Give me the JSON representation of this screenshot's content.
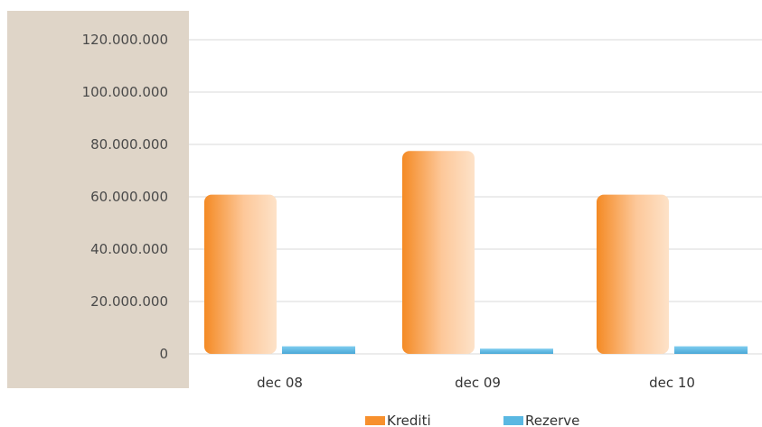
{
  "chart_data": {
    "type": "bar",
    "categories": [
      "dec 08",
      "dec 09",
      "dec 10"
    ],
    "series": [
      {
        "name": "Krediti",
        "values": [
          60800000,
          77500000,
          60800000
        ],
        "color": "#f7902d"
      },
      {
        "name": "Rezerve",
        "values": [
          2900000,
          2000000,
          2900000
        ],
        "color": "#5ab8e2"
      }
    ],
    "yticks": [
      "0",
      "20.000.000",
      "40.000.000",
      "60.000.000",
      "80.000.000",
      "100.000.000",
      "120.000.000"
    ],
    "ylim": [
      0,
      120000000
    ],
    "grid": true,
    "legend": "bottom",
    "axis_panel_color": "#dfd5c8"
  }
}
